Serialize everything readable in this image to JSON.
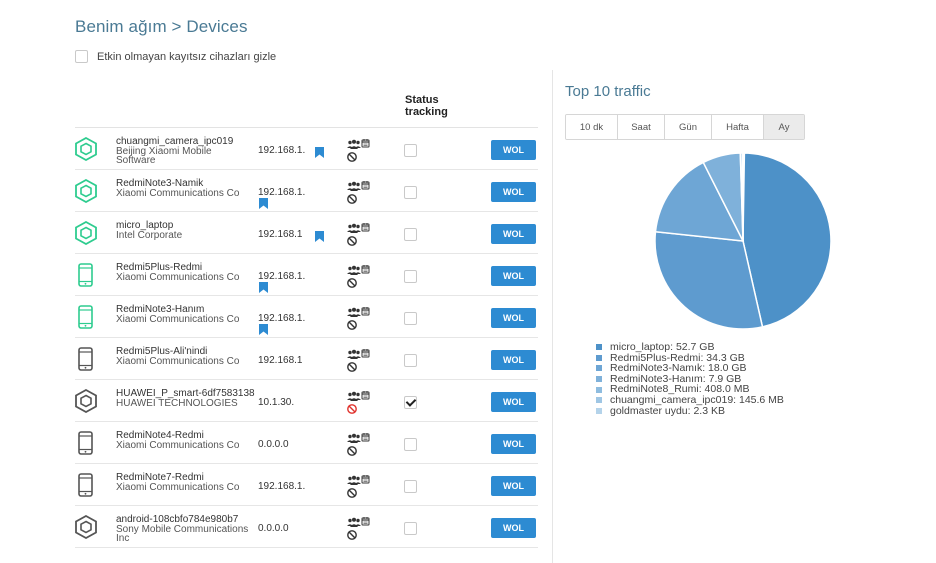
{
  "breadcrumb": "Benim ağım > Devices",
  "filter": {
    "label": "Etkin olmayan kayıtsız cihazları gizle",
    "checked": false
  },
  "table": {
    "status_header_line1": "Status",
    "status_header_line2": "tracking"
  },
  "wol_label": "WOL",
  "devices": [
    {
      "name": "chuangmi_camera_ipc019",
      "vendor": "Beijing Xiaomi Mobile Software",
      "vendor_line1": "Beijing Xiaomi Mobile",
      "vendor_line2": "Software",
      "ip": "192.168.1.",
      "icon": "hexagon-green-icon",
      "tracking": false,
      "blocked": false
    },
    {
      "name": "RedmiNote3-Namik",
      "vendor": "Xiaomi Communications Co",
      "ip": "192.168.1.",
      "icon": "hexagon-green-icon",
      "tracking": false,
      "blocked": false
    },
    {
      "name": "micro_laptop",
      "vendor": "Intel Corporate",
      "ip": "192.168.1",
      "icon": "hexagon-green-icon",
      "tracking": false,
      "blocked": false
    },
    {
      "name": "Redmi5Plus-Redmi",
      "vendor": "Xiaomi Communications Co",
      "ip": "192.168.1.",
      "icon": "phone-green-icon",
      "tracking": false,
      "blocked": false
    },
    {
      "name": "RedmiNote3-Hanım",
      "vendor": "Xiaomi Communications Co",
      "ip": "192.168.1.",
      "icon": "phone-green-icon",
      "tracking": false,
      "blocked": false
    },
    {
      "name": "Redmi5Plus-Ali'nindi",
      "vendor": "Xiaomi Communications Co",
      "ip": "192.168.1",
      "icon": "phone-gray-icon",
      "tracking": false,
      "blocked": false
    },
    {
      "name": "HUAWEI_P_smart-6df7583138",
      "vendor": "HUAWEI TECHNOLOGIES",
      "ip": "10.1.30.",
      "icon": "hexagon-gray-icon",
      "tracking": true,
      "blocked": true
    },
    {
      "name": "RedmiNote4-Redmi",
      "vendor": "Xiaomi Communications Co",
      "ip": "0.0.0.0",
      "icon": "phone-gray-icon",
      "tracking": false,
      "blocked": false
    },
    {
      "name": "RedmiNote7-Redmi",
      "vendor": "Xiaomi Communications Co",
      "ip": "192.168.1.",
      "icon": "phone-gray-icon",
      "tracking": false,
      "blocked": false
    },
    {
      "name": "android-108cbfo784e980b7",
      "vendor": "Sony Mobile Communications Inc",
      "vendor_line1": "Sony Mobile Communications",
      "vendor_line2": "Inc",
      "ip": "0.0.0.0",
      "icon": "hexagon-gray-icon",
      "tracking": false,
      "blocked": false
    }
  ],
  "traffic": {
    "title": "Top 10 traffic",
    "periods": [
      "10 dk",
      "Saat",
      "Gün",
      "Hafta",
      "Ay"
    ],
    "selected_period": "Ay",
    "legend": [
      "micro_laptop: 52.7 GB",
      "Redmi5Plus-Redmi: 34.3 GB",
      "RedmiNote3-Namık: 18.0 GB",
      "RedmiNote3-Hanım: 7.9 GB",
      "RedmiNote8_Rumi: 408.0 MB",
      "chuangmi_camera_ipc019: 145.6 MB",
      "goldmaster uydu: 2.3 KB"
    ]
  },
  "chart_data": {
    "type": "pie",
    "title": "Top 10 traffic",
    "categories": [
      "micro_laptop",
      "Redmi5Plus-Redmi",
      "RedmiNote3-Namık",
      "RedmiNote3-Hanım",
      "RedmiNote8_Rumi",
      "chuangmi_camera_ipc019",
      "goldmaster uydu"
    ],
    "values_gb": [
      52.7,
      34.3,
      18.0,
      7.9,
      0.408,
      0.1456,
      2.3e-06
    ],
    "colors": [
      "#4d91c8",
      "#5e9bcf",
      "#6ea6d5",
      "#7fb1da",
      "#8ebcdf",
      "#9fc6e4",
      "#b4d3ea"
    ],
    "legend_position": "bottom"
  }
}
